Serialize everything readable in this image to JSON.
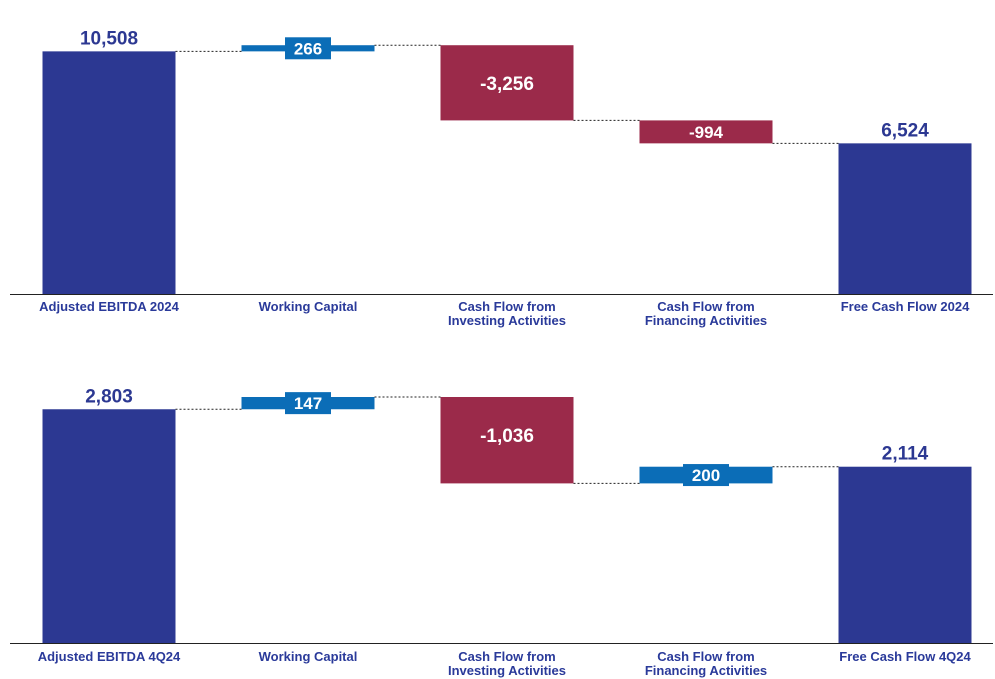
{
  "colors": {
    "total": "#2c3892",
    "positive": "#0b6db7",
    "negative": "#9b2a4a",
    "axis": "#222222",
    "connector": "#222222",
    "category_text": "#2a3a9a",
    "outside_value_text": "#2c3892",
    "inside_value_text": "#ffffff"
  },
  "chart_data": [
    {
      "type": "bar",
      "subtype": "waterfall",
      "categories": [
        "Adjusted EBITDA 2024",
        "Working Capital",
        "Cash Flow from Investing Activities",
        "Cash Flow from Financing Activities",
        "Free Cash Flow 2024"
      ],
      "category_label_lines": [
        [
          "Adjusted EBITDA 2024"
        ],
        [
          "Working Capital"
        ],
        [
          "Cash Flow from",
          "Investing Activities"
        ],
        [
          "Cash Flow from",
          "Financing Activities"
        ],
        [
          "Free Cash Flow 2024"
        ]
      ],
      "values": [
        10508,
        266,
        -3256,
        -994,
        6524
      ],
      "value_labels": [
        "10,508",
        "266",
        "-3,256",
        "-994",
        "6,524"
      ],
      "bar_kinds": [
        "total",
        "delta",
        "delta",
        "delta",
        "total"
      ],
      "ylim": [
        0,
        11000
      ],
      "grid": false,
      "legend": "none"
    },
    {
      "type": "bar",
      "subtype": "waterfall",
      "categories": [
        "Adjusted EBITDA 4Q24",
        "Working Capital",
        "Cash Flow from Investing Activities",
        "Cash Flow from Financing Activities",
        "Free Cash Flow 4Q24"
      ],
      "category_label_lines": [
        [
          "Adjusted EBITDA 4Q24"
        ],
        [
          "Working Capital"
        ],
        [
          "Cash Flow from",
          "Investing Activities"
        ],
        [
          "Cash Flow from",
          "Financing Activities"
        ],
        [
          "Free Cash Flow 4Q24"
        ]
      ],
      "values": [
        2803,
        147,
        -1036,
        200,
        2114
      ],
      "value_labels": [
        "2,803",
        "147",
        "-1,036",
        "200",
        "2,114"
      ],
      "bar_kinds": [
        "total",
        "delta",
        "delta",
        "delta",
        "total"
      ],
      "ylim": [
        0,
        2950
      ],
      "grid": false,
      "legend": "none"
    }
  ]
}
